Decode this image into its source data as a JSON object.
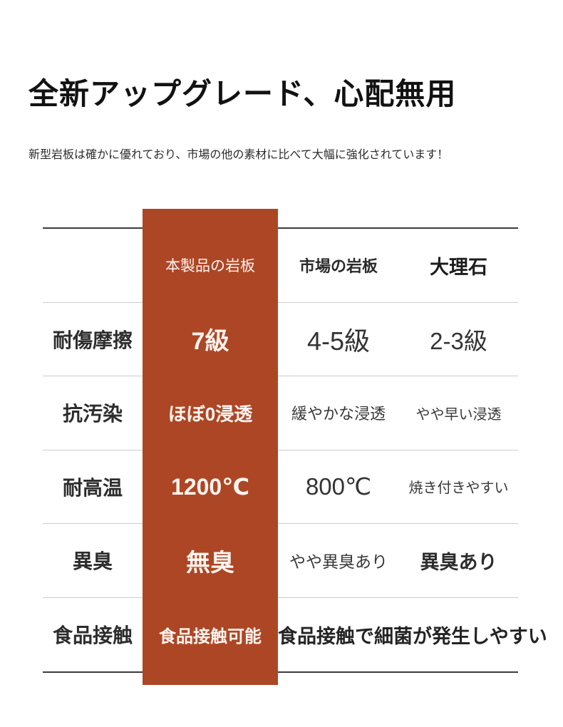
{
  "header": {
    "title": "全新アップグレード、心配無用",
    "subtitle": "新型岩板は確かに優れており、市場の他の素材に比べて大幅に強化されています！"
  },
  "table": {
    "highlight_color": "#ad4625",
    "line_color_outer": "#3c3c3c",
    "line_color_inner": "#cccccc",
    "columns": {
      "label": "",
      "ours": "本製品の岩板",
      "market": "市場の岩板",
      "marble": "大理石"
    },
    "rows": [
      {
        "label": "耐傷摩擦",
        "ours": "7級",
        "market": "4-5級",
        "marble": "2-3級"
      },
      {
        "label": "抗汚染",
        "ours": "ほぼ0浸透",
        "market": "緩やかな浸透",
        "marble": "やや早い浸透"
      },
      {
        "label": "耐高温",
        "ours": "1200℃",
        "market": "800℃",
        "marble": "焼き付きやすい"
      },
      {
        "label": "異臭",
        "ours": "無臭",
        "market": "やや異臭あり",
        "marble": "異臭あり"
      },
      {
        "label": "食品接触",
        "ours": "食品接触可能",
        "combined": "食品接触で細菌が発生しやすい"
      }
    ]
  }
}
